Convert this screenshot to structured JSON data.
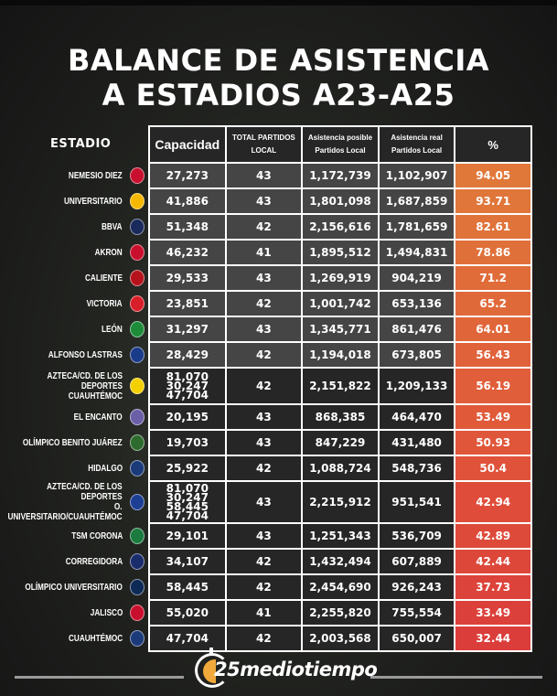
{
  "title": {
    "line1": "BALANCE DE ASISTENCIA",
    "line2": "A ESTADIOS A23-A25"
  },
  "table": {
    "stadium_header": "ESTADIO",
    "headers": {
      "capacity": "Capacidad",
      "total_matches_l1": "TOTAL PARTIDOS",
      "total_matches_l2": "LOCAL",
      "possible_l1": "Asistencia posible",
      "possible_l2": "Partidos Local",
      "real_l1": "Asistencia real",
      "real_l2": "Partidos Local",
      "pct": "%"
    },
    "rows": [
      {
        "stadium": "NEMESIO DIEZ",
        "logo": "toluca-crest-icon",
        "capacity": "27,273",
        "matches": "43",
        "possible": "1,172,739",
        "real": "1,102,907",
        "pct": "94.05",
        "pct_color": "#e0783a"
      },
      {
        "stadium": "UNIVERSITARIO",
        "logo": "tigres-crest-icon",
        "capacity": "41,886",
        "matches": "43",
        "possible": "1,801,098",
        "real": "1,687,859",
        "pct": "93.71",
        "pct_color": "#e0763a"
      },
      {
        "stadium": "BBVA",
        "logo": "monterrey-crest-icon",
        "capacity": "51,348",
        "matches": "42",
        "possible": "2,156,616",
        "real": "1,781,659",
        "pct": "82.61",
        "pct_color": "#e0733a"
      },
      {
        "stadium": "AKRON",
        "logo": "chivas-crest-icon",
        "capacity": "46,232",
        "matches": "41",
        "possible": "1,895,512",
        "real": "1,494,831",
        "pct": "78.86",
        "pct_color": "#e0703a"
      },
      {
        "stadium": "CALIENTE",
        "logo": "tijuana-crest-icon",
        "capacity": "29,533",
        "matches": "43",
        "possible": "1,269,919",
        "real": "904,219",
        "pct": "71.2",
        "pct_color": "#e06c3a"
      },
      {
        "stadium": "VICTORIA",
        "logo": "necaxa-crest-icon",
        "capacity": "23,851",
        "matches": "42",
        "possible": "1,001,742",
        "real": "653,136",
        "pct": "65.2",
        "pct_color": "#e0693a"
      },
      {
        "stadium": "LEÓN",
        "logo": "leon-crest-icon",
        "capacity": "31,297",
        "matches": "43",
        "possible": "1,345,771",
        "real": "861,476",
        "pct": "64.01",
        "pct_color": "#e0663a"
      },
      {
        "stadium": "ALFONSO LASTRAS",
        "logo": "san-luis-crest-icon",
        "capacity": "28,429",
        "matches": "42",
        "possible": "1,194,018",
        "real": "673,805",
        "pct": "56.43",
        "pct_color": "#e0623a"
      },
      {
        "stadium": "AZTECA/CD. DE LOS DEPORTES\nCUAUHTÉMOC",
        "logo": "america-crest-icon",
        "capacity": "81,070\n30,247\n47,704",
        "matches": "42",
        "possible": "2,151,822",
        "real": "1,209,133",
        "pct": "56.19",
        "pct_color": "#e05e3a"
      },
      {
        "stadium": "EL ENCANTO",
        "logo": "mazatlan-crest-icon",
        "capacity": "20,195",
        "matches": "43",
        "possible": "868,385",
        "real": "464,470",
        "pct": "53.49",
        "pct_color": "#e05a3a"
      },
      {
        "stadium": "OLÍMPICO BENITO JUÁREZ",
        "logo": "juarez-crest-icon",
        "capacity": "19,703",
        "matches": "43",
        "possible": "847,229",
        "real": "431,480",
        "pct": "50.93",
        "pct_color": "#e0563a"
      },
      {
        "stadium": "HIDALGO",
        "logo": "pachuca-crest-icon",
        "capacity": "25,922",
        "matches": "42",
        "possible": "1,088,724",
        "real": "548,736",
        "pct": "50.4",
        "pct_color": "#e0523a"
      },
      {
        "stadium": "AZTECA/CD. DE LOS DEPORTES\nO. UNIVERSITARIO/CUAUHTÉMOC",
        "logo": "cruz-azul-crest-icon",
        "capacity": "81,070\n30,247\n58,445\n47,704",
        "matches": "43",
        "possible": "2,215,912",
        "real": "951,541",
        "pct": "42.94",
        "pct_color": "#df4d3a"
      },
      {
        "stadium": "TSM CORONA",
        "logo": "santos-crest-icon",
        "capacity": "29,101",
        "matches": "43",
        "possible": "1,251,343",
        "real": "536,709",
        "pct": "42.89",
        "pct_color": "#de4a3a"
      },
      {
        "stadium": "CORREGIDORA",
        "logo": "queretaro-crest-icon",
        "capacity": "34,107",
        "matches": "42",
        "possible": "1,432,494",
        "real": "607,889",
        "pct": "42.44",
        "pct_color": "#dd473a"
      },
      {
        "stadium": "OLÍMPICO UNIVERSITARIO",
        "logo": "pumas-crest-icon",
        "capacity": "58,445",
        "matches": "42",
        "possible": "2,454,690",
        "real": "926,243",
        "pct": "37.73",
        "pct_color": "#dc433a"
      },
      {
        "stadium": "JALISCO",
        "logo": "atlas-crest-icon",
        "capacity": "55,020",
        "matches": "41",
        "possible": "2,255,820",
        "real": "755,554",
        "pct": "33.49",
        "pct_color": "#db403a"
      },
      {
        "stadium": "CUAUHTÉMOC",
        "logo": "puebla-crest-icon",
        "capacity": "47,704",
        "matches": "42",
        "possible": "2,003,568",
        "real": "650,007",
        "pct": "32.44",
        "pct_color": "#da3d3a"
      }
    ]
  },
  "footer": {
    "brand": "mediotiempo",
    "brand_number": "25"
  },
  "chart_data": {
    "type": "table",
    "title": "BALANCE DE ASISTENCIA A ESTADIOS A23-A25",
    "columns": [
      "Estadio",
      "Capacidad",
      "Total Partidos Local",
      "Asistencia posible Partidos Local",
      "Asistencia real Partidos Local",
      "%"
    ],
    "rows": [
      [
        "Nemesio Diez",
        "27,273",
        43,
        1172739,
        1102907,
        94.05
      ],
      [
        "Universitario",
        "41,886",
        43,
        1801098,
        1687859,
        93.71
      ],
      [
        "BBVA",
        "51,348",
        42,
        2156616,
        1781659,
        82.61
      ],
      [
        "Akron",
        "46,232",
        41,
        1895512,
        1494831,
        78.86
      ],
      [
        "Caliente",
        "29,533",
        43,
        1269919,
        904219,
        71.2
      ],
      [
        "Victoria",
        "23,851",
        42,
        1001742,
        653136,
        65.2
      ],
      [
        "León",
        "31,297",
        43,
        1345771,
        861476,
        64.01
      ],
      [
        "Alfonso Lastras",
        "28,429",
        42,
        1194018,
        673805,
        56.43
      ],
      [
        "Azteca/Cd. de los Deportes Cuauhtémoc",
        "81,070 / 30,247 / 47,704",
        42,
        2151822,
        1209133,
        56.19
      ],
      [
        "El Encanto",
        "20,195",
        43,
        868385,
        464470,
        53.49
      ],
      [
        "Olímpico Benito Juárez",
        "19,703",
        43,
        847229,
        431480,
        50.93
      ],
      [
        "Hidalgo",
        "25,922",
        42,
        1088724,
        548736,
        50.4
      ],
      [
        "Azteca/Cd. de los Deportes O. Universitario/Cuauhtémoc",
        "81,070 / 30,247 / 58,445 / 47,704",
        43,
        2215912,
        951541,
        42.94
      ],
      [
        "TSM Corona",
        "29,101",
        43,
        1251343,
        536709,
        42.89
      ],
      [
        "Corregidora",
        "34,107",
        42,
        1432494,
        607889,
        42.44
      ],
      [
        "Olímpico Universitario",
        "58,445",
        42,
        2454690,
        926243,
        37.73
      ],
      [
        "Jalisco",
        "55,020",
        41,
        2255820,
        755554,
        33.49
      ],
      [
        "Cuauhtémoc",
        "47,704",
        42,
        2003568,
        650007,
        32.44
      ]
    ]
  }
}
